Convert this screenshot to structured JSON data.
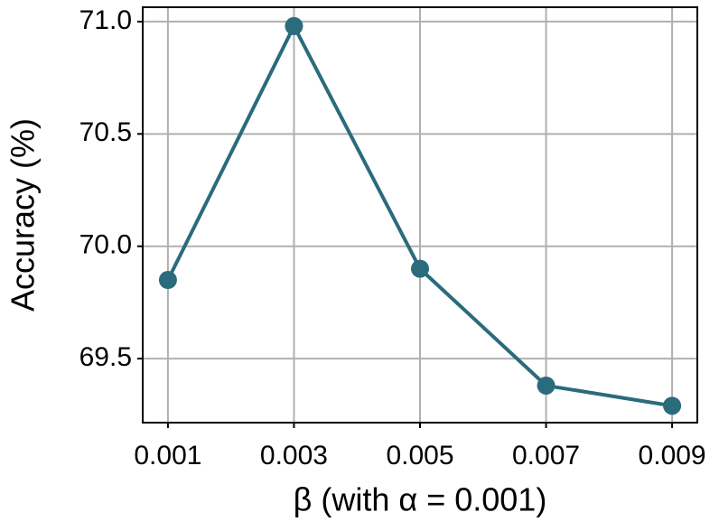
{
  "chart_data": {
    "type": "line",
    "x": [
      0.001,
      0.003,
      0.005,
      0.007,
      0.009
    ],
    "values": [
      69.85,
      70.98,
      69.9,
      69.38,
      69.29
    ],
    "color": "#2a6b7c",
    "xlabel": "β (with α = 0.001)",
    "ylabel": "Accuracy (%)",
    "xlim": [
      0.0006,
      0.0094
    ],
    "xticks": [
      0.001,
      0.003,
      0.005,
      0.007,
      0.009
    ],
    "ylim": [
      69.215,
      71.064
    ],
    "yticks": [
      69.5,
      {
        "value": 70.0,
        "label": "70.0"
      },
      70.5,
      {
        "value": 71.0,
        "label": "71.0"
      }
    ],
    "grid": true
  }
}
